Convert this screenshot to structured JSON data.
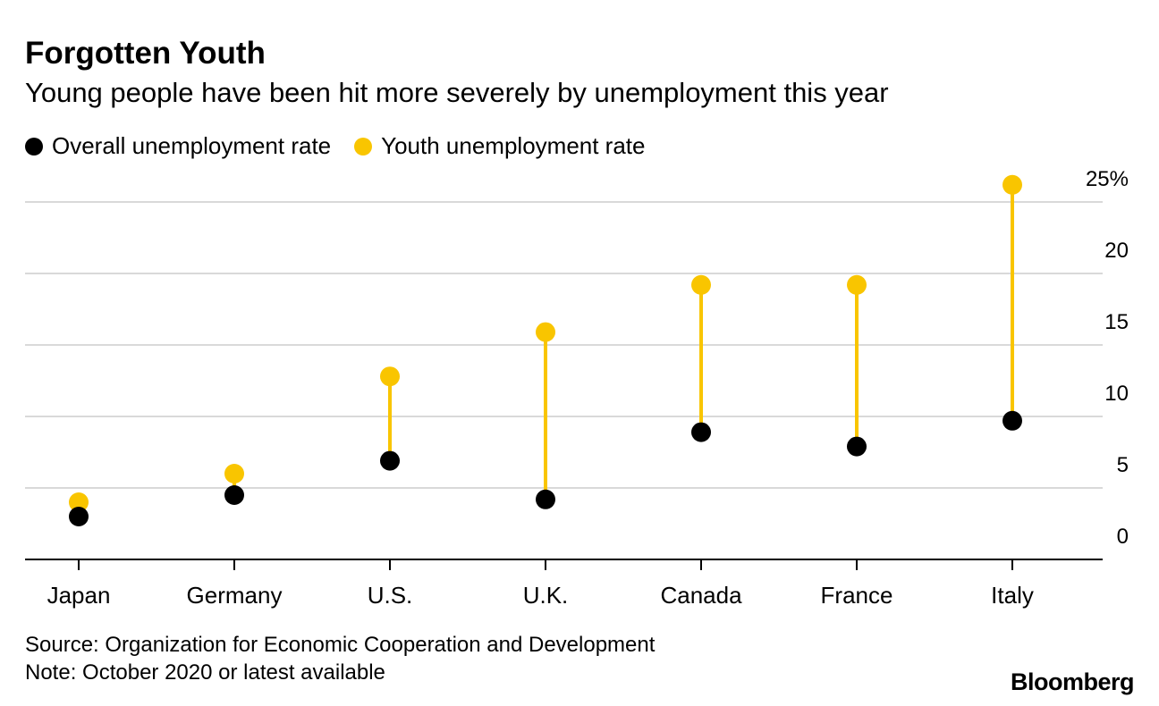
{
  "title": "Forgotten Youth",
  "subtitle": "Young people have been hit more severely by unemployment this year",
  "legend": {
    "overall": "Overall unemployment rate",
    "youth": "Youth unemployment rate"
  },
  "colors": {
    "overall": "#000000",
    "youth": "#f9c500",
    "grid": "#d9d9d9",
    "axis": "#000000"
  },
  "chart_data": {
    "type": "dumbbell",
    "categories": [
      "Japan",
      "Germany",
      "U.S.",
      "U.K.",
      "Canada",
      "France",
      "Italy"
    ],
    "series": [
      {
        "name": "Overall unemployment rate",
        "values": [
          3.0,
          4.5,
          6.9,
          4.2,
          8.9,
          7.9,
          9.7
        ]
      },
      {
        "name": "Youth unemployment rate",
        "values": [
          4.0,
          6.0,
          12.8,
          15.9,
          19.2,
          19.2,
          26.2
        ]
      }
    ],
    "yticks": [
      "0",
      "5",
      "10",
      "15",
      "20",
      "25%"
    ],
    "ylim": [
      0,
      25
    ],
    "ylabel": "",
    "xlabel": ""
  },
  "footer": {
    "source": "Source: Organization for Economic Cooperation and Development",
    "note": "Note: October 2020 or latest available"
  },
  "brand": "Bloomberg"
}
